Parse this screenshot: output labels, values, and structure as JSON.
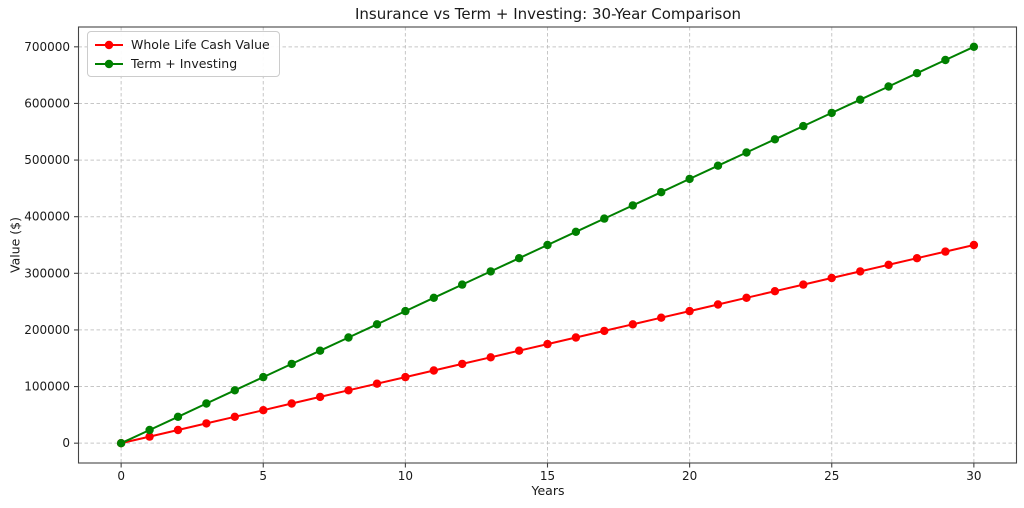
{
  "chart_data": {
    "type": "line",
    "title": "Insurance vs Term + Investing: 30-Year Comparison",
    "xlabel": "Years",
    "ylabel": "Value ($)",
    "x": [
      0,
      1,
      2,
      3,
      4,
      5,
      6,
      7,
      8,
      9,
      10,
      11,
      12,
      13,
      14,
      15,
      16,
      17,
      18,
      19,
      20,
      21,
      22,
      23,
      24,
      25,
      26,
      27,
      28,
      29,
      30
    ],
    "series": [
      {
        "name": "Whole Life Cash Value",
        "color": "#ff0000",
        "marker": "circle",
        "values": [
          0,
          11667,
          23333,
          35000,
          46667,
          58333,
          70000,
          81667,
          93333,
          105000,
          116667,
          128333,
          140000,
          151667,
          163333,
          175000,
          186667,
          198333,
          210000,
          221667,
          233333,
          245000,
          256667,
          268333,
          280000,
          291667,
          303333,
          315000,
          326667,
          338333,
          350000
        ]
      },
      {
        "name": "Term + Investing",
        "color": "#008000",
        "marker": "circle",
        "values": [
          0,
          23333,
          46667,
          70000,
          93333,
          116667,
          140000,
          163333,
          186667,
          210000,
          233333,
          256667,
          280000,
          303333,
          326667,
          350000,
          373333,
          396667,
          420000,
          443333,
          466667,
          490000,
          513333,
          536667,
          560000,
          583333,
          606667,
          630000,
          653333,
          676667,
          700000
        ]
      }
    ],
    "xticks": [
      0,
      5,
      10,
      15,
      20,
      25,
      30
    ],
    "xtick_labels": [
      "0",
      "5",
      "10",
      "15",
      "20",
      "25",
      "30"
    ],
    "yticks": [
      0,
      100000,
      200000,
      300000,
      400000,
      500000,
      600000,
      700000
    ],
    "ytick_labels": [
      "0",
      "100000",
      "200000",
      "300000",
      "400000",
      "500000",
      "600000",
      "700000"
    ],
    "xlim": [
      -1.5,
      31.5
    ],
    "ylim": [
      -35000,
      735000
    ],
    "grid": true,
    "grid_color": "#c0c0c0",
    "spine_color": "#454545",
    "text_color": "#1a1a1a",
    "legend_position": "upper-left"
  }
}
